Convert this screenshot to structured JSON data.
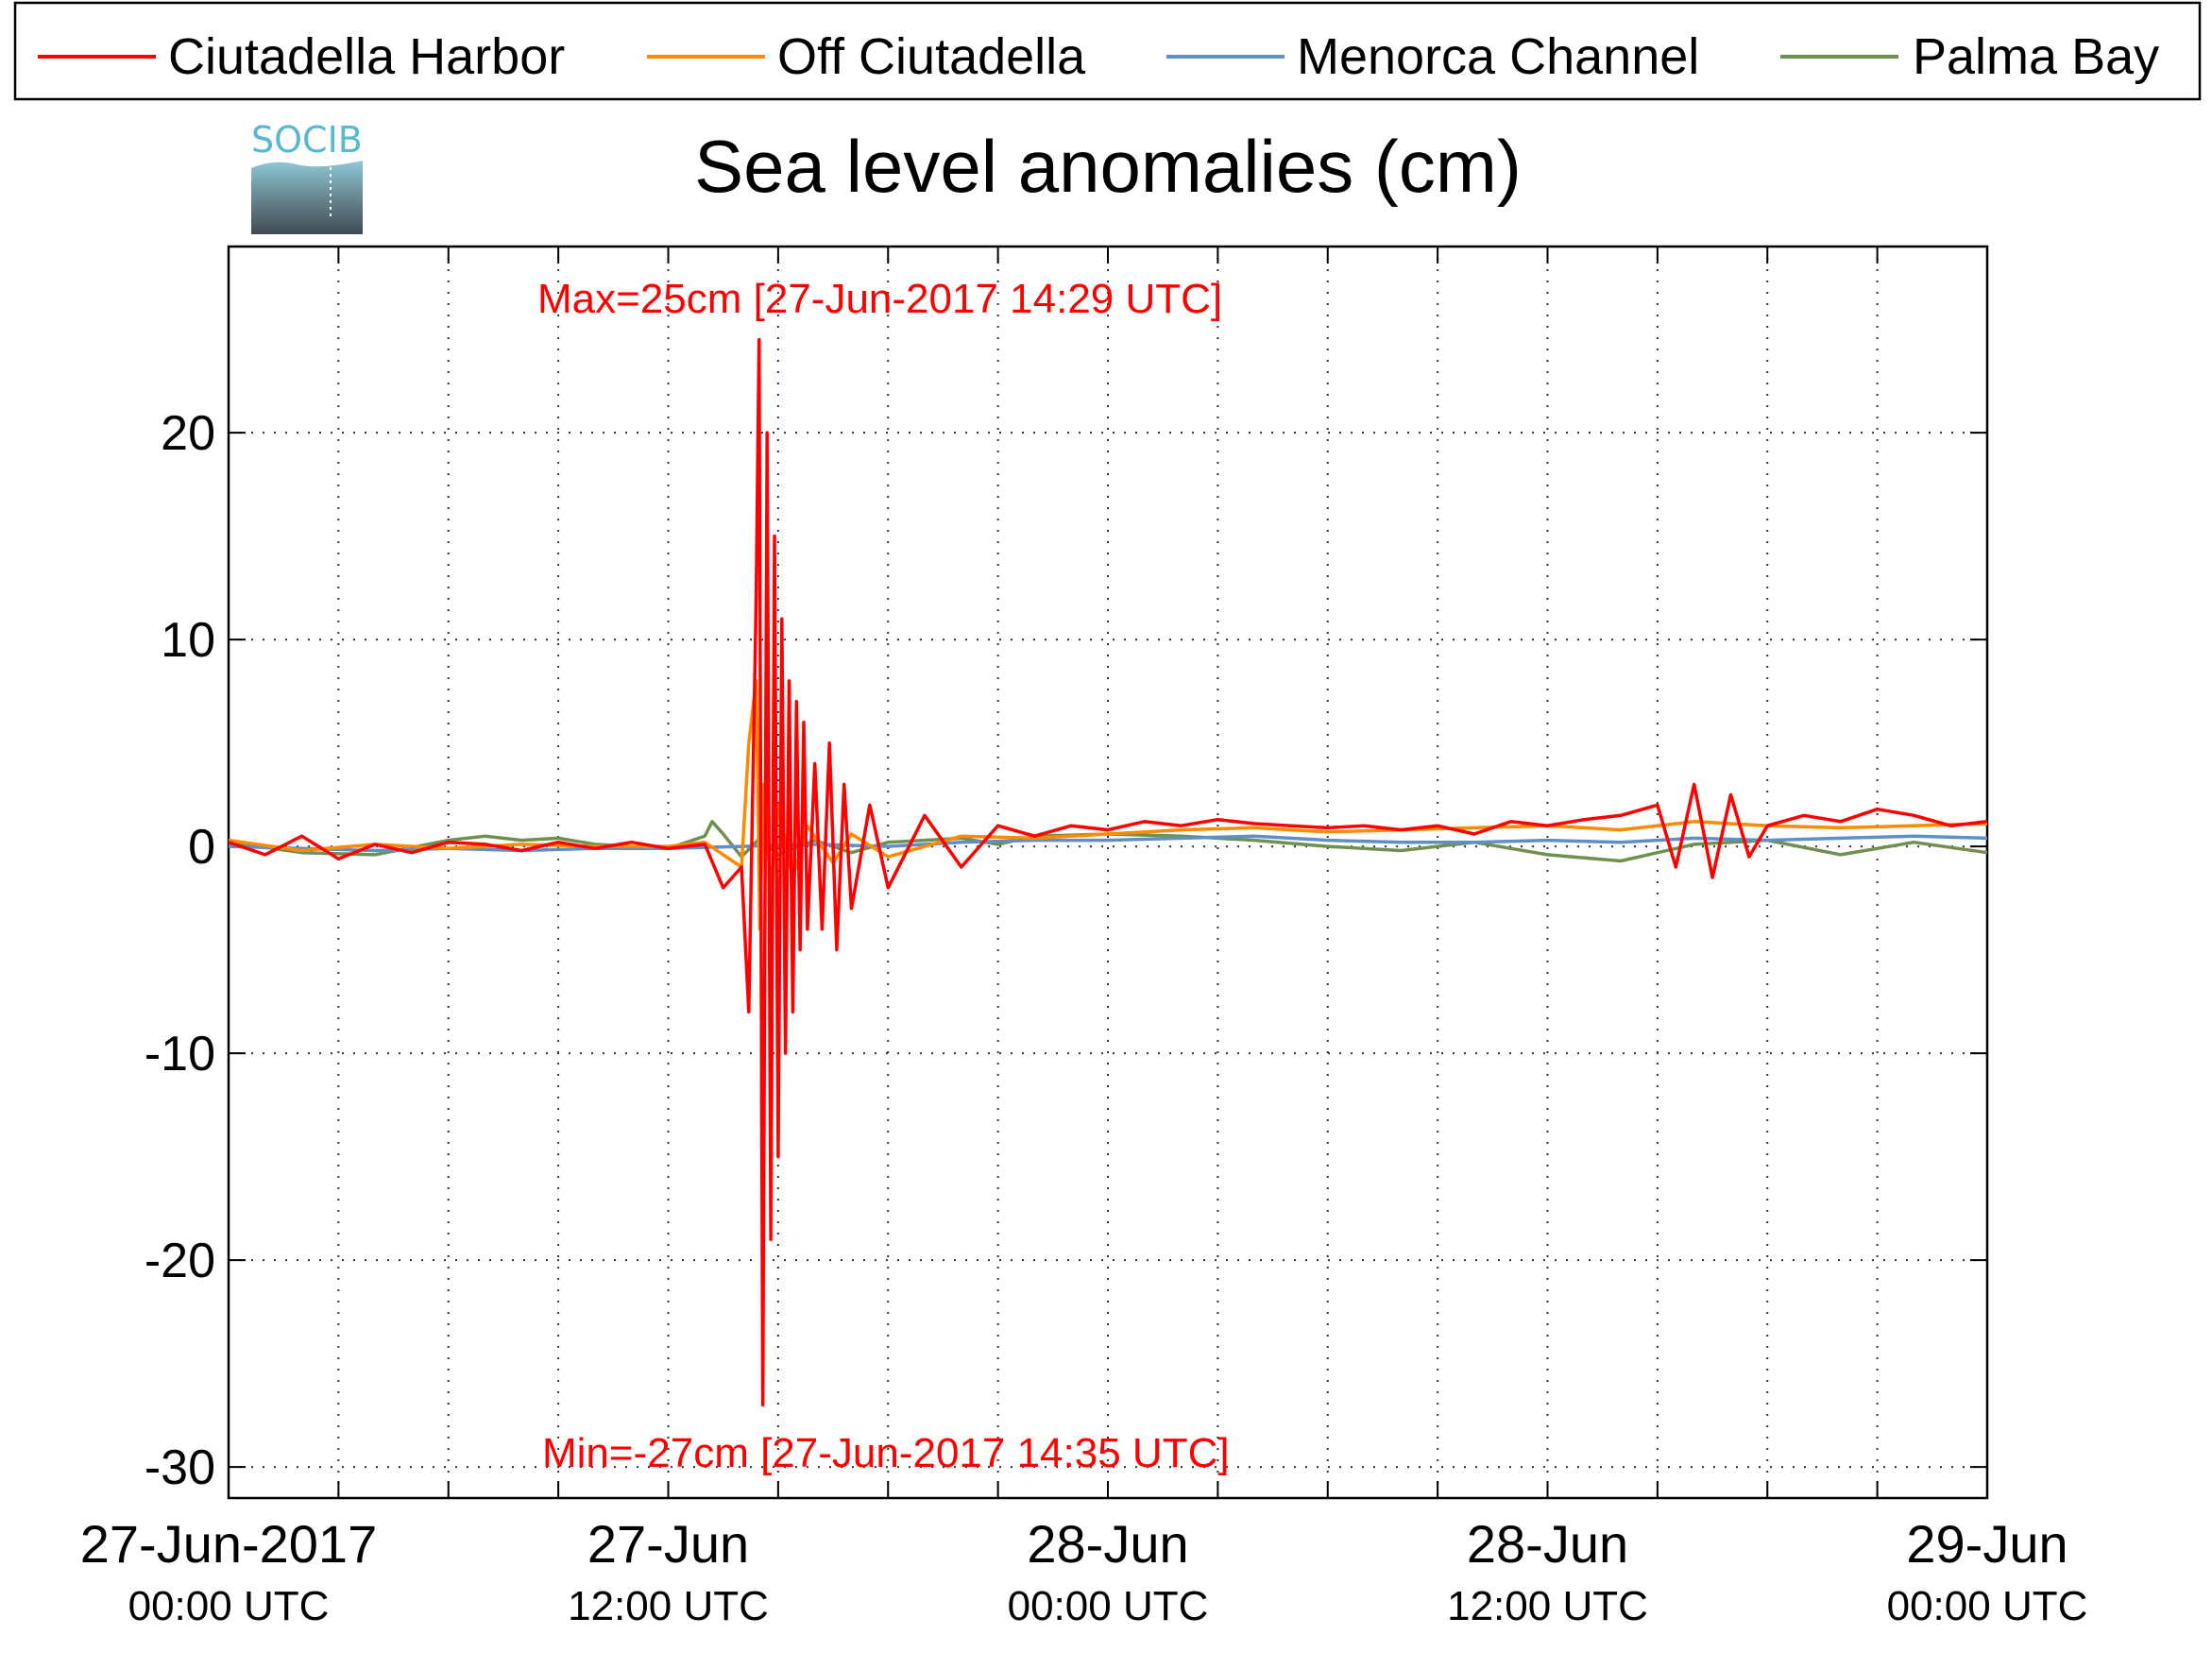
{
  "logo": {
    "text": "SOCIB",
    "icon": "socib-logo-icon"
  },
  "colors": {
    "harbor": "#ff0000",
    "off": "#ff8a00",
    "channel": "#5f8fc7",
    "palma": "#6f9150",
    "grid": "#333333",
    "axis": "#000000",
    "annotation": "#ff0000"
  },
  "chart_data": {
    "type": "line",
    "title": "Sea level anomalies (cm)",
    "xlabel": "",
    "ylabel": "",
    "ylim": [
      -31.5,
      29
    ],
    "xlim_hours": [
      0,
      48
    ],
    "grid": true,
    "legend_position": "top",
    "legend": [
      "Ciutadella Harbor",
      "Off Ciutadella",
      "Menorca Channel",
      "Palma Bay"
    ],
    "y_ticks": [
      20,
      10,
      0,
      -10,
      -20,
      -30
    ],
    "x_ticks": [
      {
        "hour": 0,
        "date": "27-Jun-2017",
        "time": "00:00 UTC"
      },
      {
        "hour": 12,
        "date": "27-Jun",
        "time": "12:00 UTC"
      },
      {
        "hour": 24,
        "date": "28-Jun",
        "time": "00:00 UTC"
      },
      {
        "hour": 36,
        "date": "28-Jun",
        "time": "12:00 UTC"
      },
      {
        "hour": 48,
        "date": "29-Jun",
        "time": "00:00 UTC"
      }
    ],
    "x_minor_ticks_hours": [
      3,
      6,
      9,
      15,
      18,
      21,
      27,
      30,
      33,
      39,
      42,
      45
    ],
    "annotations": {
      "max_label": "Max=25cm [27-Jun-2017 14:29 UTC]",
      "min_label": "Min=-27cm [27-Jun-2017 14:35 UTC]",
      "max_value": 25,
      "min_value": -27
    },
    "series": [
      {
        "name": "Ciutadella Harbor",
        "color": "#ff0000",
        "x": [
          0,
          1,
          2,
          3,
          4,
          5,
          6,
          7,
          8,
          9,
          10,
          11,
          12,
          13,
          13.5,
          14,
          14.2,
          14.4,
          14.48,
          14.55,
          14.58,
          14.7,
          14.8,
          14.9,
          15,
          15.1,
          15.2,
          15.3,
          15.4,
          15.5,
          15.6,
          15.7,
          15.8,
          16,
          16.2,
          16.4,
          16.6,
          16.8,
          17,
          17.5,
          18,
          19,
          20,
          21,
          22,
          23,
          24,
          25,
          26,
          27,
          28,
          29,
          30,
          31,
          32,
          33,
          34,
          35,
          36,
          37,
          38,
          39,
          39.5,
          40,
          40.5,
          41,
          41.5,
          42,
          43,
          44,
          45,
          46,
          47,
          48
        ],
        "y": [
          0.2,
          -0.4,
          0.5,
          -0.6,
          0.1,
          -0.3,
          0.2,
          0.1,
          -0.2,
          0.2,
          -0.1,
          0.2,
          -0.1,
          0.1,
          -2,
          -1,
          -8,
          12,
          24.5,
          -11,
          -27,
          20,
          -19,
          15,
          -15,
          11,
          -10,
          8,
          -8,
          7,
          -5,
          6,
          -4,
          4,
          -4,
          5,
          -5,
          3,
          -3,
          2,
          -2,
          1.5,
          -1,
          1,
          0.5,
          1,
          0.8,
          1.2,
          1,
          1.3,
          1.1,
          1,
          0.9,
          1,
          0.8,
          1,
          0.6,
          1.2,
          1,
          1.3,
          1.5,
          2,
          -1,
          3,
          -1.5,
          2.5,
          -0.5,
          1,
          1.5,
          1.2,
          1.8,
          1.5,
          1,
          1.2
        ]
      },
      {
        "name": "Off Ciutadella",
        "color": "#ff8a00",
        "x": [
          0,
          2,
          4,
          6,
          8,
          10,
          12,
          13,
          14,
          14.2,
          14.4,
          14.5,
          14.6,
          14.8,
          15,
          15.4,
          15.8,
          16.5,
          17,
          18,
          20,
          22,
          24,
          26,
          28,
          30,
          32,
          34,
          36,
          38,
          40,
          42,
          44,
          46,
          48
        ],
        "y": [
          0.3,
          -0.2,
          0.1,
          -0.1,
          0.1,
          0,
          0,
          0.2,
          -1,
          5,
          8,
          -4,
          3,
          -2,
          2,
          -1.5,
          1,
          -0.8,
          0.6,
          -0.5,
          0.5,
          0.4,
          0.6,
          0.8,
          0.9,
          0.7,
          0.8,
          0.9,
          1,
          0.8,
          1.2,
          1,
          0.9,
          1,
          1.1
        ]
      },
      {
        "name": "Menorca Channel",
        "color": "#5f8fc7",
        "x": [
          0,
          2,
          4,
          6,
          8,
          10,
          12,
          14,
          16,
          18,
          20,
          22,
          24,
          26,
          28,
          30,
          32,
          34,
          36,
          38,
          40,
          42,
          44,
          46,
          48
        ],
        "y": [
          0,
          -0.1,
          -0.2,
          -0.1,
          -0.2,
          -0.1,
          -0.1,
          0,
          0.1,
          0,
          0.2,
          0.3,
          0.3,
          0.4,
          0.5,
          0.3,
          0.2,
          0.2,
          0.3,
          0.2,
          0.4,
          0.3,
          0.4,
          0.5,
          0.4
        ]
      },
      {
        "name": "Palma Bay",
        "color": "#6f9150",
        "x": [
          0,
          2,
          4,
          6,
          7,
          8,
          9,
          10,
          11,
          12,
          13,
          13.2,
          13.5,
          14,
          14.5,
          15,
          16,
          17,
          18,
          19,
          20,
          21,
          22,
          24,
          26,
          28,
          30,
          32,
          34,
          36,
          38,
          40,
          42,
          44,
          46,
          48
        ],
        "y": [
          0.2,
          -0.3,
          -0.4,
          0.3,
          0.5,
          0.3,
          0.4,
          0.1,
          0,
          -0.1,
          0.5,
          1.2,
          0.6,
          -0.5,
          0.4,
          -0.4,
          0.3,
          -0.3,
          0.2,
          0.3,
          0.4,
          0.1,
          0.5,
          0.6,
          0.5,
          0.3,
          0,
          -0.2,
          0.2,
          -0.4,
          -0.7,
          0.1,
          0.3,
          -0.4,
          0.2,
          -0.3
        ]
      }
    ]
  }
}
